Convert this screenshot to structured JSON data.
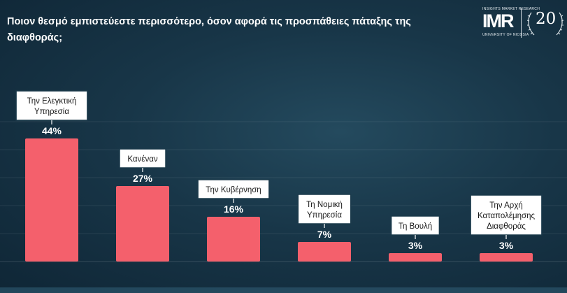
{
  "title": "Ποιον θεσμό εμπιστεύεστε περισσότερο, όσον αφορά τις προσπάθειες πάταξης της διαφθοράς;",
  "logo": {
    "tagline": "INSIGHTS MARKET RESEARCH",
    "brand": "IMR",
    "university": "UNIVERSITY OF NICOSIA",
    "anniversary": "20"
  },
  "colors": {
    "bar": "#f4606c",
    "label_box_bg": "#ffffff",
    "label_box_border": "#1b3a4b",
    "value_text": "#ffffff"
  },
  "chart_data": {
    "type": "bar",
    "categories": [
      "Την Ελεγκτική Υπηρεσία",
      "Κανέναν",
      "Την Κυβέρνηση",
      "Τη Νομική Υπηρεσία",
      "Τη Βουλή",
      "Την Αρχή Καταπολέμησης Διαφθοράς"
    ],
    "category_lines": [
      [
        "Την Ελεγκτική",
        "Υπηρεσία"
      ],
      [
        "Κανέναν"
      ],
      [
        "Την Κυβέρνηση"
      ],
      [
        "Τη Νομική",
        "Υπηρεσία"
      ],
      [
        "Τη Βουλή"
      ],
      [
        "Την Αρχή",
        "Καταπολέμησης",
        "Διαφθοράς"
      ]
    ],
    "values": [
      44,
      27,
      16,
      7,
      3,
      3
    ],
    "value_labels": [
      "44%",
      "27%",
      "16%",
      "7%",
      "3%",
      "3%"
    ],
    "ylim": [
      0,
      50
    ],
    "grid": true,
    "xlabel": "",
    "ylabel": ""
  }
}
